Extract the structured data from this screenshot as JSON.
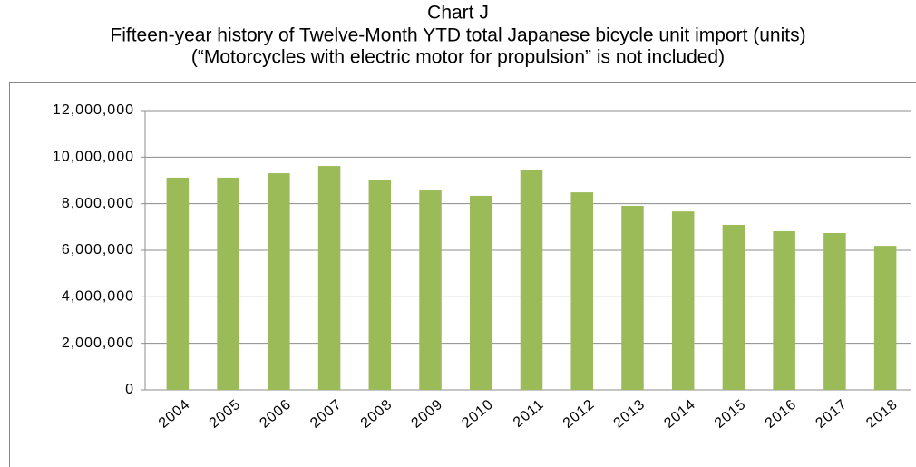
{
  "chart_data": {
    "type": "bar",
    "title": "Chart J",
    "subtitle": [
      "Fifteen-year history of Twelve-Month YTD total Japanese bicycle unit import (units)",
      "(“Motorcycles with electric motor for propulsion” is not included)"
    ],
    "categories": [
      "2004",
      "2005",
      "2006",
      "2007",
      "2008",
      "2009",
      "2010",
      "2011",
      "2012",
      "2013",
      "2014",
      "2015",
      "2016",
      "2017",
      "2018"
    ],
    "values": [
      9120000,
      9120000,
      9310000,
      9620000,
      9000000,
      8570000,
      8340000,
      9430000,
      8490000,
      7910000,
      7670000,
      7090000,
      6820000,
      6740000,
      6190000
    ],
    "color": "#9bbb59",
    "ylim": [
      0,
      12000000
    ],
    "yticks": [
      0,
      {
        "value": 2000000,
        "label": "2,000,000"
      },
      {
        "value": 4000000,
        "label": "4,000,000"
      },
      {
        "value": 6000000,
        "label": "6,000,000"
      },
      {
        "value": 8000000,
        "label": "8,000,000"
      },
      {
        "value": 10000000,
        "label": "10,000,000"
      },
      {
        "value": 12000000,
        "label": "12,000,000"
      }
    ],
    "grid": true
  }
}
